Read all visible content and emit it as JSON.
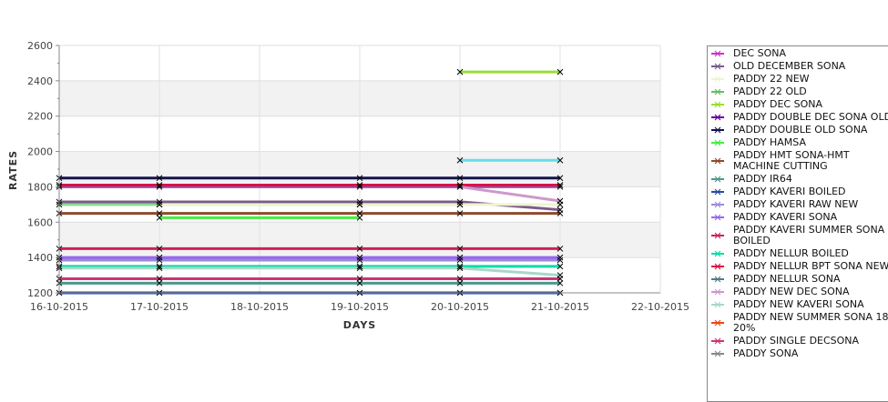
{
  "chart_data": {
    "type": "line",
    "xlabel": "DAYS",
    "ylabel": "RATES",
    "ylim": [
      1200,
      2600
    ],
    "yticks": [
      "1200",
      "1400",
      "1600",
      "1800",
      "2000",
      "2200",
      "2400",
      "2600"
    ],
    "xticks": [
      "16-10-2015",
      "17-10-2015",
      "18-10-2015",
      "19-10-2015",
      "20-10-2015",
      "21-10-2015",
      "22-10-2015"
    ],
    "legend_position": "right",
    "series": [
      {
        "name": "DEC SONA",
        "color": "#cc33cc",
        "points": []
      },
      {
        "name": "OLD DECEMBER SONA",
        "color": "#7a5a8e",
        "points": [
          [
            0,
            1715
          ],
          [
            1,
            1715
          ],
          [
            3,
            1715
          ],
          [
            4,
            1715
          ],
          [
            5,
            1670
          ]
        ]
      },
      {
        "name": "PADDY 22 NEW",
        "color": "#eef5cc",
        "points": [
          [
            1,
            1700
          ],
          [
            3,
            1700
          ],
          [
            4,
            1700
          ],
          [
            5,
            1700
          ]
        ]
      },
      {
        "name": "PADDY 22 OLD",
        "color": "#66bb66",
        "points": []
      },
      {
        "name": "PADDY DEC SONA",
        "color": "#99dd33",
        "points": [
          [
            4,
            2450
          ],
          [
            5,
            2450
          ]
        ]
      },
      {
        "name": "PADDY DOUBLE DEC SONA OLD",
        "color": "#660099",
        "points": []
      },
      {
        "name": "PADDY DOUBLE OLD SONA",
        "color": "#141450",
        "points": [
          [
            0,
            1850
          ],
          [
            1,
            1850
          ],
          [
            3,
            1850
          ],
          [
            4,
            1850
          ],
          [
            5,
            1850
          ]
        ]
      },
      {
        "name": "PADDY HAMSA",
        "color": "#44ee44",
        "points": [
          [
            1,
            1625
          ],
          [
            3,
            1625
          ]
        ]
      },
      {
        "name": "PADDY HMT SONA-HMT MACHINE CUTTING",
        "color": "#8b4a2b",
        "points": [
          [
            0,
            1650
          ],
          [
            1,
            1650
          ],
          [
            3,
            1650
          ],
          [
            4,
            1650
          ],
          [
            5,
            1650
          ]
        ]
      },
      {
        "name": "PADDY IR64",
        "color": "#4a9a88",
        "points": [
          [
            0,
            1255
          ],
          [
            1,
            1255
          ],
          [
            3,
            1255
          ],
          [
            4,
            1255
          ],
          [
            5,
            1255
          ]
        ]
      },
      {
        "name": "PADDY KAVERI BOILED",
        "color": "#2a4aa0",
        "points": [
          [
            0,
            1200
          ],
          [
            1,
            1200
          ],
          [
            3,
            1200
          ],
          [
            4,
            1200
          ],
          [
            5,
            1200
          ]
        ]
      },
      {
        "name": "PADDY KAVERI RAW NEW",
        "color": "#9a8ad8",
        "points": [
          [
            0,
            1385
          ],
          [
            1,
            1385
          ],
          [
            3,
            1385
          ],
          [
            4,
            1385
          ],
          [
            5,
            1385
          ]
        ]
      },
      {
        "name": "PADDY KAVERI SONA",
        "color": "#9966ee",
        "points": [
          [
            0,
            1400
          ],
          [
            1,
            1400
          ],
          [
            3,
            1400
          ],
          [
            4,
            1400
          ],
          [
            5,
            1400
          ]
        ]
      },
      {
        "name": "PADDY KAVERI SUMMER SONA BOILED",
        "color": "#cc2255",
        "points": [
          [
            0,
            1450
          ],
          [
            1,
            1450
          ],
          [
            3,
            1450
          ],
          [
            4,
            1450
          ],
          [
            5,
            1450
          ]
        ]
      },
      {
        "name": "PADDY NELLUR BOILED",
        "color": "#00ddaa",
        "points": [
          [
            0,
            1350
          ],
          [
            1,
            1350
          ],
          [
            3,
            1350
          ],
          [
            4,
            1350
          ],
          [
            5,
            1350
          ]
        ]
      },
      {
        "name": "PADDY NELLUR BPT SONA NEW",
        "color": "#dd1144",
        "points": [
          [
            0,
            1810
          ],
          [
            1,
            1810
          ],
          [
            3,
            1810
          ],
          [
            4,
            1810
          ],
          [
            5,
            1810
          ]
        ]
      },
      {
        "name": "PADDY NELLUR SONA",
        "color": "#557788",
        "points": []
      },
      {
        "name": "PADDY NEW DEC SONA",
        "color": "#cc99cc",
        "points": [
          [
            4,
            1800
          ],
          [
            5,
            1720
          ]
        ]
      },
      {
        "name": "PADDY NEW KAVERI SONA",
        "color": "#a8d8c8",
        "points": [
          [
            0,
            1340
          ],
          [
            1,
            1340
          ],
          [
            3,
            1340
          ],
          [
            4,
            1340
          ],
          [
            5,
            1300
          ]
        ]
      },
      {
        "name": "PADDY NEW SUMMER SONA 18-20%",
        "color": "#ee4411",
        "points": []
      },
      {
        "name": "PADDY SINGLE DECSONA",
        "color": "#cc3377",
        "points": [
          [
            0,
            1280
          ],
          [
            1,
            1280
          ],
          [
            3,
            1280
          ],
          [
            4,
            1280
          ],
          [
            5,
            1280
          ]
        ]
      },
      {
        "name": "PADDY SONA",
        "color": "#888888",
        "points": []
      }
    ],
    "extra_lines": [
      {
        "color": "#88dd88",
        "points": [
          [
            0,
            1700
          ],
          [
            1,
            1700
          ],
          [
            3,
            1700
          ],
          [
            4,
            1700
          ]
        ]
      },
      {
        "color": "#8855bb",
        "points": [
          [
            0,
            1800
          ],
          [
            1,
            1800
          ],
          [
            3,
            1800
          ],
          [
            4,
            1800
          ],
          [
            5,
            1800
          ]
        ]
      },
      {
        "color": "#66dde8",
        "points": [
          [
            4,
            1950
          ],
          [
            5,
            1950
          ]
        ]
      }
    ]
  }
}
